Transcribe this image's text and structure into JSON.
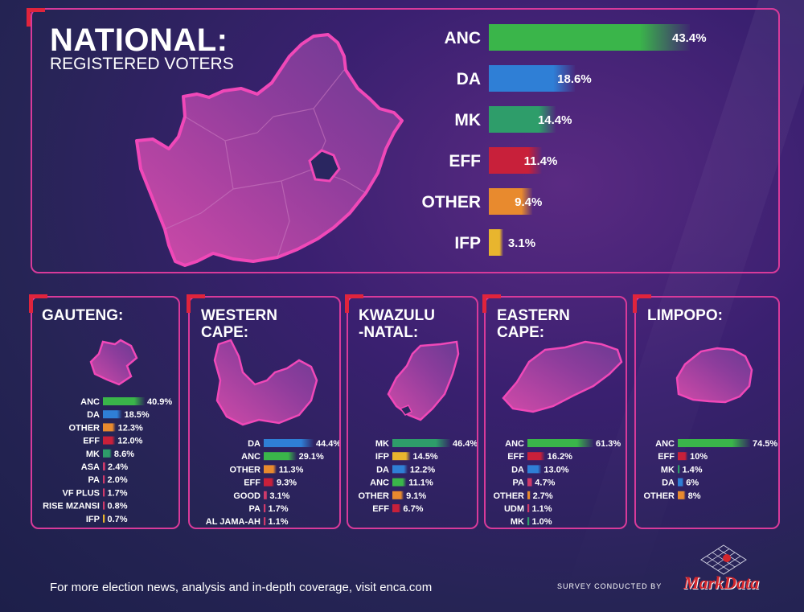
{
  "national": {
    "title": "NATIONAL:",
    "subtitle": "REGISTERED VOTERS"
  },
  "colors": {
    "ANC": "#3ab54a",
    "DA": "#2f7fd6",
    "MK": "#2e9d6a",
    "EFF": "#c8203a",
    "OTHER": "#e88a2e",
    "IFP": "#e8b52e",
    "default": "#cf3a6a",
    "panel_border": "#d83a9a",
    "corner": "#e0243c",
    "map": "#b0409a"
  },
  "chart_data": [
    {
      "type": "bar",
      "title": "NATIONAL: REGISTERED VOTERS",
      "categories": [
        "ANC",
        "DA",
        "MK",
        "EFF",
        "OTHER",
        "IFP"
      ],
      "values": [
        43.4,
        18.6,
        14.4,
        11.4,
        9.4,
        3.1
      ],
      "value_labels": [
        "43.4%",
        "18.6%",
        "14.4%",
        "11.4%",
        "9.4%",
        "3.1%"
      ]
    },
    {
      "type": "bar",
      "title": "GAUTENG:",
      "categories": [
        "ANC",
        "DA",
        "OTHER",
        "EFF",
        "MK",
        "ASA",
        "PA",
        "VF PLUS",
        "RISE MZANSI",
        "IFP"
      ],
      "values": [
        40.9,
        18.5,
        12.3,
        12.0,
        8.6,
        2.4,
        2.0,
        1.7,
        0.8,
        0.7
      ],
      "value_labels": [
        "40.9%",
        "18.5%",
        "12.3%",
        "12.0%",
        "8.6%",
        "2.4%",
        "2.0%",
        "1.7%",
        "0.8%",
        "0.7%"
      ]
    },
    {
      "type": "bar",
      "title": "WESTERN CAPE:",
      "categories": [
        "DA",
        "ANC",
        "OTHER",
        "EFF",
        "GOOD",
        "PA",
        "AL JAMA-AH"
      ],
      "values": [
        44.4,
        29.1,
        11.3,
        9.3,
        3.1,
        1.7,
        1.1
      ],
      "value_labels": [
        "44.4%",
        "29.1%",
        "11.3%",
        "9.3%",
        "3.1%",
        "1.7%",
        "1.1%"
      ]
    },
    {
      "type": "bar",
      "title": "KWAZULU -NATAL:",
      "categories": [
        "MK",
        "IFP",
        "DA",
        "ANC",
        "OTHER",
        "EFF"
      ],
      "values": [
        46.4,
        14.5,
        12.2,
        11.1,
        9.1,
        6.7
      ],
      "value_labels": [
        "46.4%",
        "14.5%",
        "12.2%",
        "11.1%",
        "9.1%",
        "6.7%"
      ]
    },
    {
      "type": "bar",
      "title": "EASTERN CAPE:",
      "categories": [
        "ANC",
        "EFF",
        "DA",
        "PA",
        "OTHER",
        "UDM",
        "MK"
      ],
      "values": [
        61.3,
        16.2,
        13.0,
        4.7,
        2.7,
        1.1,
        1.0
      ],
      "value_labels": [
        "61.3%",
        "16.2%",
        "13.0%",
        "4.7%",
        "2.7%",
        "1.1%",
        "1.0%"
      ]
    },
    {
      "type": "bar",
      "title": "LIMPOPO:",
      "categories": [
        "ANC",
        "EFF",
        "MK",
        "DA",
        "OTHER"
      ],
      "values": [
        74.5,
        10,
        1.4,
        6,
        8
      ],
      "value_labels": [
        "74.5%",
        "10%",
        "1.4%",
        "6%",
        "8%"
      ]
    }
  ],
  "provinces": [
    {
      "title_line1": "GAUTENG:",
      "title_line2": ""
    },
    {
      "title_line1": "WESTERN",
      "title_line2": "CAPE:"
    },
    {
      "title_line1": "KWAZULU",
      "title_line2": "-NATAL:"
    },
    {
      "title_line1": "EASTERN",
      "title_line2": "CAPE:"
    },
    {
      "title_line1": "LIMPOPO:",
      "title_line2": ""
    }
  ],
  "footer": {
    "text": "For more election news, analysis and in-depth coverage, visit enca.com",
    "survey": "SURVEY CONDUCTED BY",
    "logo_text": "MarkData"
  }
}
